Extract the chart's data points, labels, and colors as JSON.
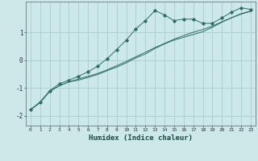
{
  "xlabel": "Humidex (Indice chaleur)",
  "ylabel": "",
  "bg_color": "#cce8e8",
  "grid_color": "#aacccc",
  "line_color": "#2e6e64",
  "xlim": [
    -0.5,
    23.5
  ],
  "ylim": [
    -2.35,
    2.1
  ],
  "yticks": [
    -2,
    -1,
    0,
    1
  ],
  "xticks": [
    0,
    1,
    2,
    3,
    4,
    5,
    6,
    7,
    8,
    9,
    10,
    11,
    12,
    13,
    14,
    15,
    16,
    17,
    18,
    19,
    20,
    21,
    22,
    23
  ],
  "series1_x": [
    0,
    1,
    2,
    3,
    4,
    5,
    6,
    7,
    8,
    9,
    10,
    11,
    12,
    13,
    14,
    15,
    16,
    17,
    18,
    19,
    20,
    21,
    22,
    23
  ],
  "series1_y": [
    -1.78,
    -1.5,
    -1.1,
    -0.85,
    -0.72,
    -0.58,
    -0.42,
    -0.22,
    0.05,
    0.38,
    0.72,
    1.12,
    1.42,
    1.78,
    1.62,
    1.42,
    1.47,
    1.47,
    1.32,
    1.32,
    1.52,
    1.72,
    1.88,
    1.82
  ],
  "series2_x": [
    0,
    1,
    2,
    3,
    4,
    5,
    6,
    7,
    8,
    9,
    10,
    11,
    12,
    13,
    14,
    15,
    16,
    17,
    18,
    19,
    20,
    21,
    22,
    23
  ],
  "series2_y": [
    -1.78,
    -1.52,
    -1.12,
    -0.92,
    -0.78,
    -0.68,
    -0.58,
    -0.48,
    -0.35,
    -0.2,
    -0.05,
    0.12,
    0.28,
    0.45,
    0.6,
    0.75,
    0.88,
    1.0,
    1.1,
    1.22,
    1.38,
    1.52,
    1.65,
    1.75
  ],
  "series3_x": [
    0,
    1,
    2,
    3,
    4,
    5,
    6,
    7,
    8,
    9,
    10,
    11,
    12,
    13,
    14,
    15,
    16,
    17,
    18,
    19,
    20,
    21,
    22,
    23
  ],
  "series3_y": [
    -1.78,
    -1.52,
    -1.12,
    -0.92,
    -0.78,
    -0.72,
    -0.62,
    -0.52,
    -0.38,
    -0.25,
    -0.1,
    0.08,
    0.22,
    0.42,
    0.58,
    0.72,
    0.82,
    0.92,
    1.02,
    1.18,
    1.36,
    1.52,
    1.67,
    1.76
  ]
}
